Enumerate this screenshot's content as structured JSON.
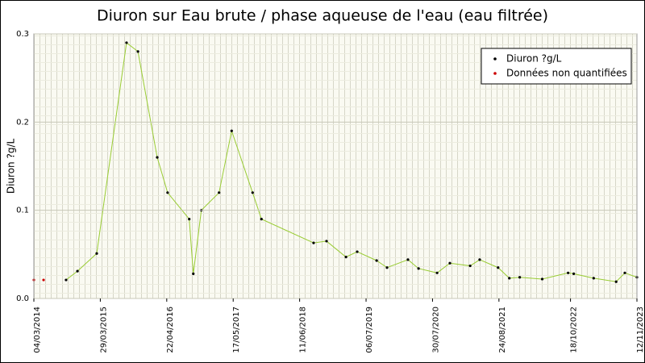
{
  "chart_data": {
    "type": "line",
    "title": "Diuron sur Eau brute / phase aqueuse de l'eau (eau filtrée)",
    "ylabel": "Diuron ?g/L",
    "series": [
      {
        "name": "Diuron ?g/L",
        "color": "#99cc33",
        "marker_color": "#000000",
        "x": [
          "09/09/2014",
          "15/11/2014",
          "08/03/2015",
          "30/08/2015",
          "05/11/2015",
          "26/02/2016",
          "27/04/2016",
          "01/09/2016",
          "25/09/2016",
          "11/11/2016",
          "23/02/2017",
          "08/05/2017",
          "08/09/2017",
          "30/10/2017",
          "01/09/2018",
          "16/11/2018",
          "10/03/2019",
          "15/05/2019",
          "06/09/2019",
          "06/11/2019",
          "08/03/2020",
          "09/05/2020",
          "26/08/2020",
          "09/11/2020",
          "08/03/2021",
          "03/05/2021",
          "19/08/2021",
          "24/10/2021",
          "24/12/2021",
          "05/05/2022",
          "04/10/2022",
          "06/11/2022",
          "03/03/2023",
          "13/07/2023",
          "02/09/2023",
          "12/11/2023"
        ],
        "values": [
          0.021,
          0.031,
          0.051,
          0.29,
          0.28,
          0.16,
          0.12,
          0.09,
          0.028,
          0.1,
          0.12,
          0.19,
          0.12,
          0.09,
          0.063,
          0.065,
          0.047,
          0.053,
          0.043,
          0.035,
          0.044,
          0.034,
          0.029,
          0.04,
          0.037,
          0.044,
          0.035,
          0.023,
          0.024,
          0.022,
          0.029,
          0.028,
          0.023,
          0.019,
          0.029,
          0.024
        ]
      },
      {
        "name": "Données non quantifiées",
        "color": "#cc0000",
        "marker_color": "#cc0000",
        "line": false,
        "x": [
          "04/03/2014",
          "30/04/2014"
        ],
        "values": [
          0.021,
          0.021
        ]
      }
    ],
    "xlim": [
      "04/03/2014",
      "12/11/2023"
    ],
    "xticks": [
      "04/03/2014",
      "29/03/2015",
      "22/04/2016",
      "17/05/2017",
      "11/06/2018",
      "06/07/2019",
      "30/07/2020",
      "24/08/2021",
      "18/10/2022",
      "12/11/2023"
    ],
    "ylim": [
      0,
      0.3
    ],
    "yticks": [
      {
        "value": 0,
        "label": "0.0"
      },
      0.1,
      0.2,
      0.3
    ],
    "grid": true,
    "legend": "upper right"
  }
}
